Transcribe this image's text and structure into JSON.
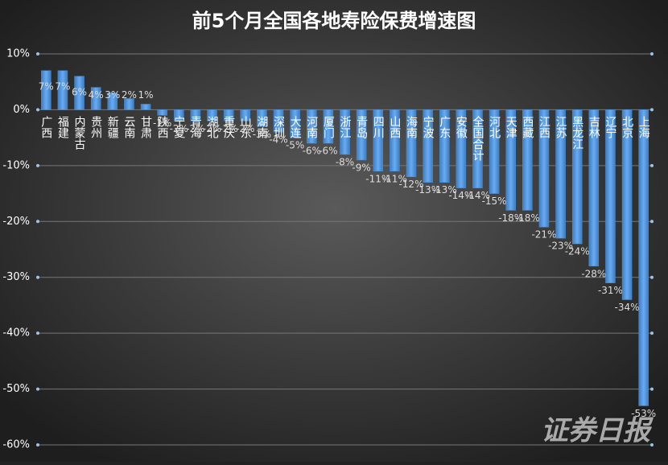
{
  "chart_data": {
    "type": "bar",
    "title": "前5个月全国各地寿险保费增速图",
    "watermark": "证券日报",
    "categories": [
      "广西",
      "福建",
      "内蒙古",
      "贵州",
      "新疆",
      "云南",
      "甘肃",
      "陕西",
      "宁夏",
      "青海",
      "湖北",
      "重庆",
      "山东",
      "湖南",
      "深圳",
      "大连",
      "河南",
      "厦门",
      "浙江",
      "青岛",
      "四川",
      "山西",
      "海南",
      "宁波",
      "广东",
      "安徽",
      "全国合计",
      "河北",
      "天津",
      "西藏",
      "江西",
      "江苏",
      "黑龙江",
      "吉林",
      "辽宁",
      "北京",
      "上海"
    ],
    "values": [
      7,
      7,
      6,
      4,
      3,
      2,
      1,
      -1,
      -2,
      -2,
      -2,
      -2,
      -2,
      -3,
      -4,
      -5,
      -6,
      -6,
      -8,
      -9,
      -11,
      -11,
      -12,
      -13,
      -13,
      -14,
      -14,
      -15,
      -18,
      -18,
      -21,
      -23,
      -24,
      -28,
      -31,
      -34,
      -53
    ],
    "value_labels": [
      "7%",
      "7%",
      "6%",
      "4%",
      "3%",
      "2%",
      "1%",
      "-1%",
      "-2%",
      "-2%",
      "-2%",
      "-2%",
      "-2%",
      "-3%",
      "-4%",
      "-5%",
      "-6%",
      "-6%",
      "-8%",
      "-9%",
      "-11%",
      "-11%",
      "-12%",
      "-13%",
      "-13%",
      "-14%",
      "-14%",
      "-15%",
      "-18%",
      "-18%",
      "-21%",
      "-23%",
      "-24%",
      "-28%",
      "-31%",
      "-34%",
      "-53%"
    ],
    "color": "#4a90d9",
    "ylim": [
      -60,
      10
    ],
    "yticks": [
      {
        "value": 10,
        "label": "10%"
      },
      {
        "value": 0,
        "label": "0%"
      },
      {
        "value": -10,
        "label": "-10%"
      },
      {
        "value": -20,
        "label": "-20%"
      },
      {
        "value": -30,
        "label": "-30%"
      },
      {
        "value": -40,
        "label": "-40%"
      },
      {
        "value": -50,
        "label": "-50%"
      },
      {
        "value": -60,
        "label": "-60%"
      }
    ],
    "grid": true
  }
}
